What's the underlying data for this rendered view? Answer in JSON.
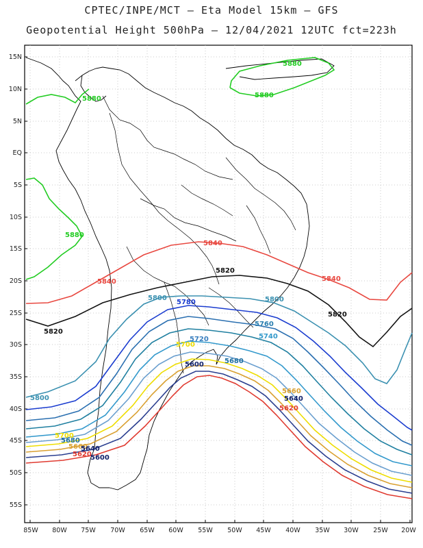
{
  "header": {
    "line1": "CPTEC/INPE/MCT –  Eta Model 15km – GFS",
    "line2": "Geopotential Height 500hPa – 12/04/2021 12UTC fct=223h"
  },
  "axes": {
    "lat_labels": [
      "15N",
      "10N",
      "5N",
      "EQ",
      "5S",
      "10S",
      "15S",
      "20S",
      "25S",
      "30S",
      "35S",
      "40S",
      "45S",
      "50S",
      "55S"
    ],
    "lon_labels": [
      "85W",
      "80W",
      "75W",
      "70W",
      "65W",
      "60W",
      "55W",
      "50W",
      "45W",
      "40W",
      "35W",
      "30W",
      "25W",
      "20W"
    ]
  },
  "colors": {
    "c5880": "#22cc22",
    "c5860": "#e8473f",
    "c5840": "#111111",
    "c5820": "#3aa0c0",
    "c5800": "#1a3ccf",
    "c5780": "#2a6fb0",
    "c5760": "#1f7fa0",
    "c5740": "#3399cc",
    "c5720": "#6a9fcf",
    "c5700": "#eedd00",
    "c5680": "#d9a030",
    "c5660": "#2a3e8f",
    "c5640": "#e03a30",
    "c5620": "#10206a",
    "c5600": "#10206a"
  },
  "contour_labels": [
    {
      "text": "5880",
      "color": "#22cc22"
    },
    {
      "text": "5880",
      "color": "#22cc22"
    },
    {
      "text": "5880",
      "color": "#22cc22"
    },
    {
      "text": "5880",
      "color": "#22cc22"
    },
    {
      "text": "5840",
      "color": "#e8473f"
    },
    {
      "text": "5840",
      "color": "#e8473f"
    },
    {
      "text": "5840",
      "color": "#e8473f"
    },
    {
      "text": "5820",
      "color": "#111111"
    },
    {
      "text": "5820",
      "color": "#111111"
    },
    {
      "text": "5820",
      "color": "#111111"
    },
    {
      "text": "5800",
      "color": "#3a90b0"
    },
    {
      "text": "5800",
      "color": "#3a90b0"
    },
    {
      "text": "5800",
      "color": "#3a90b0"
    },
    {
      "text": "5780",
      "color": "#1a3ccf"
    },
    {
      "text": "5760",
      "color": "#2a7fb0"
    },
    {
      "text": "5740",
      "color": "#3399cc"
    },
    {
      "text": "5720",
      "color": "#3a7fbf"
    },
    {
      "text": "5700",
      "color": "#eedd00"
    },
    {
      "text": "5700",
      "color": "#eedd00"
    },
    {
      "text": "5680",
      "color": "#1f6fa0"
    },
    {
      "text": "5680",
      "color": "#1f6fa0"
    },
    {
      "text": "5660",
      "color": "#d9a030"
    },
    {
      "text": "5660",
      "color": "#d9a030"
    },
    {
      "text": "5640",
      "color": "#10206a"
    },
    {
      "text": "5640",
      "color": "#10206a"
    },
    {
      "text": "5620",
      "color": "#e03a30"
    },
    {
      "text": "5620",
      "color": "#e03a30"
    },
    {
      "text": "5600",
      "color": "#10206a"
    },
    {
      "text": "5600",
      "color": "#10206a"
    }
  ]
}
